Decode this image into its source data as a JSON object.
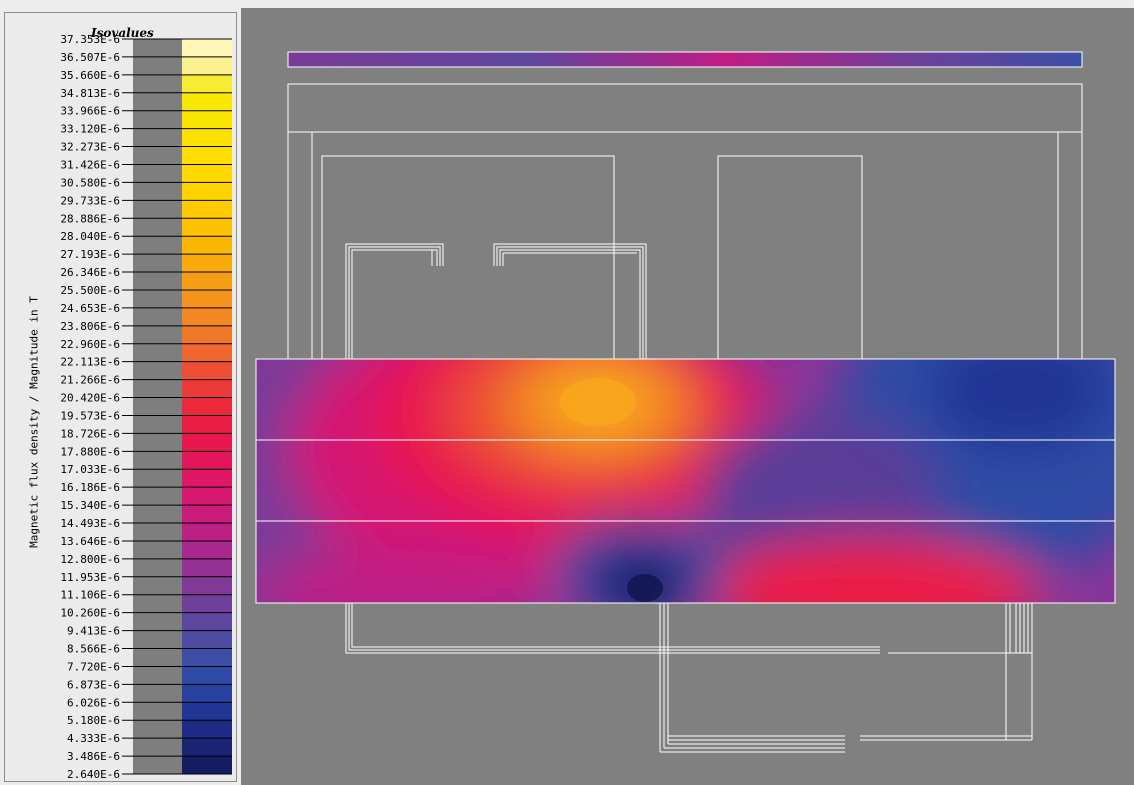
{
  "legend": {
    "title": "Isovalues",
    "axis_title": "Magnetic flux density / Magnitude in T",
    "levels": [
      {
        "label": "37.353E-6",
        "color": "#fdf6b6"
      },
      {
        "label": "36.507E-6",
        "color": "#fbf090"
      },
      {
        "label": "35.660E-6",
        "color": "#f6ec33"
      },
      {
        "label": "34.813E-6",
        "color": "#f7e702"
      },
      {
        "label": "33.966E-6",
        "color": "#f9e400"
      },
      {
        "label": "33.120E-6",
        "color": "#fbe100"
      },
      {
        "label": "32.273E-6",
        "color": "#fedd00"
      },
      {
        "label": "31.426E-6",
        "color": "#ffd800"
      },
      {
        "label": "30.580E-6",
        "color": "#ffd300"
      },
      {
        "label": "29.733E-6",
        "color": "#ffcb00"
      },
      {
        "label": "28.886E-6",
        "color": "#fdc202"
      },
      {
        "label": "28.040E-6",
        "color": "#fbb706"
      },
      {
        "label": "27.193E-6",
        "color": "#f9ab0d"
      },
      {
        "label": "26.346E-6",
        "color": "#f79f14"
      },
      {
        "label": "25.500E-6",
        "color": "#f5931b"
      },
      {
        "label": "24.653E-6",
        "color": "#f38722"
      },
      {
        "label": "23.806E-6",
        "color": "#f07829"
      },
      {
        "label": "22.960E-6",
        "color": "#ee6630"
      },
      {
        "label": "22.113E-6",
        "color": "#ec4f34"
      },
      {
        "label": "21.266E-6",
        "color": "#eb3a38"
      },
      {
        "label": "20.420E-6",
        "color": "#eb283c"
      },
      {
        "label": "19.573E-6",
        "color": "#ea1d44"
      },
      {
        "label": "18.726E-6",
        "color": "#e8184f"
      },
      {
        "label": "17.880E-6",
        "color": "#e4165b"
      },
      {
        "label": "17.033E-6",
        "color": "#de1766"
      },
      {
        "label": "16.186E-6",
        "color": "#d61871"
      },
      {
        "label": "15.340E-6",
        "color": "#cb1b7b"
      },
      {
        "label": "14.493E-6",
        "color": "#bd2085"
      },
      {
        "label": "13.646E-6",
        "color": "#a9288d"
      },
      {
        "label": "12.800E-6",
        "color": "#953193"
      },
      {
        "label": "11.953E-6",
        "color": "#813997"
      },
      {
        "label": "11.106E-6",
        "color": "#6e409a"
      },
      {
        "label": "10.260E-6",
        "color": "#5c469e"
      },
      {
        "label": "9.413E-6",
        "color": "#4c4ca2"
      },
      {
        "label": "8.566E-6",
        "color": "#3e4ea6"
      },
      {
        "label": "7.720E-6",
        "color": "#2f4ba5"
      },
      {
        "label": "6.873E-6",
        "color": "#2641a0"
      },
      {
        "label": "6.026E-6",
        "color": "#213595"
      },
      {
        "label": "5.180E-6",
        "color": "#1d2b86"
      },
      {
        "label": "4.333E-6",
        "color": "#1a2374"
      },
      {
        "label": "3.486E-6",
        "color": "#161c62"
      },
      {
        "label": "2.640E-6",
        "color": "#101650"
      }
    ]
  },
  "colors": {
    "viewport_bg": "#808080",
    "outline": "#ffffff",
    "low": "#5a3e98",
    "high_core": "#f9a81d"
  }
}
